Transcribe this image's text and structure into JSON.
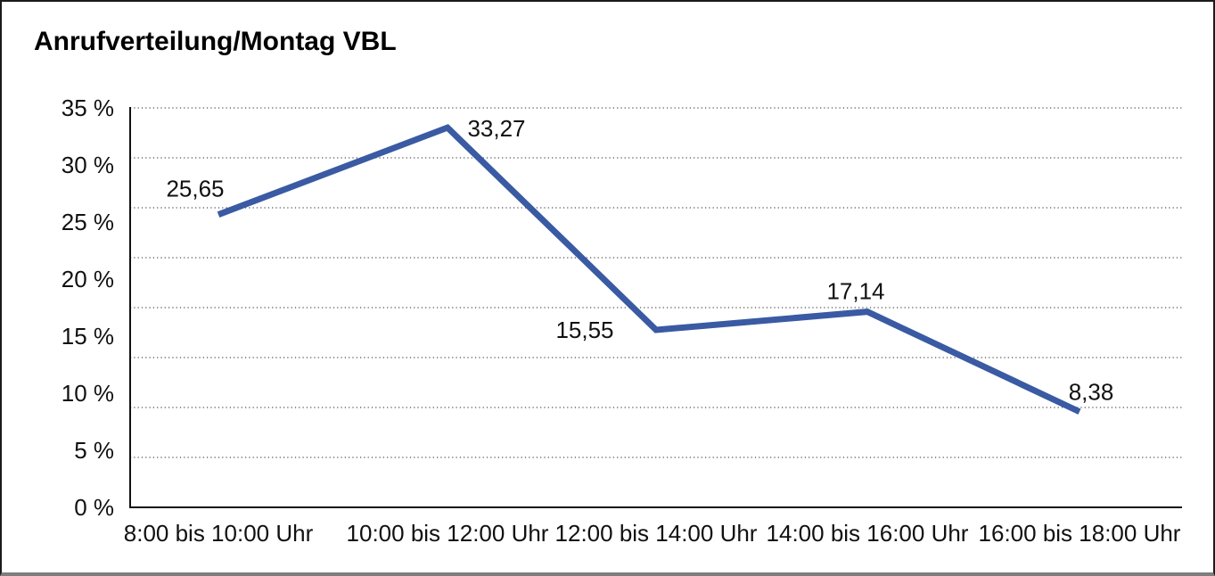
{
  "chart_data": {
    "type": "line",
    "title": "Anrufverteilung/Montag VBL",
    "categories": [
      "8:00 bis 10:00 Uhr",
      "10:00 bis 12:00 Uhr",
      "12:00 bis 14:00 Uhr",
      "14:00 bis 16:00 Uhr",
      "16:00 bis 18:00 Uhr"
    ],
    "values": [
      25.65,
      33.27,
      15.55,
      17.14,
      8.38
    ],
    "value_labels": [
      "25,65",
      "33,27",
      "15,55",
      "17,14",
      "8,38"
    ],
    "y_tick_labels": [
      "35 %",
      "30 %",
      "25 %",
      "20 %",
      "15 %",
      "10 %",
      "5 %",
      "0 %"
    ],
    "ylim": [
      0,
      35
    ],
    "y_tick_step": 5,
    "xlabel": "",
    "ylabel": "",
    "legend": "none",
    "grid": "horizontal-dotted",
    "line_color": "#3A5AA3",
    "axis_color": "#111111",
    "grid_color": "#4d4d4d",
    "text_color": "#111111"
  }
}
